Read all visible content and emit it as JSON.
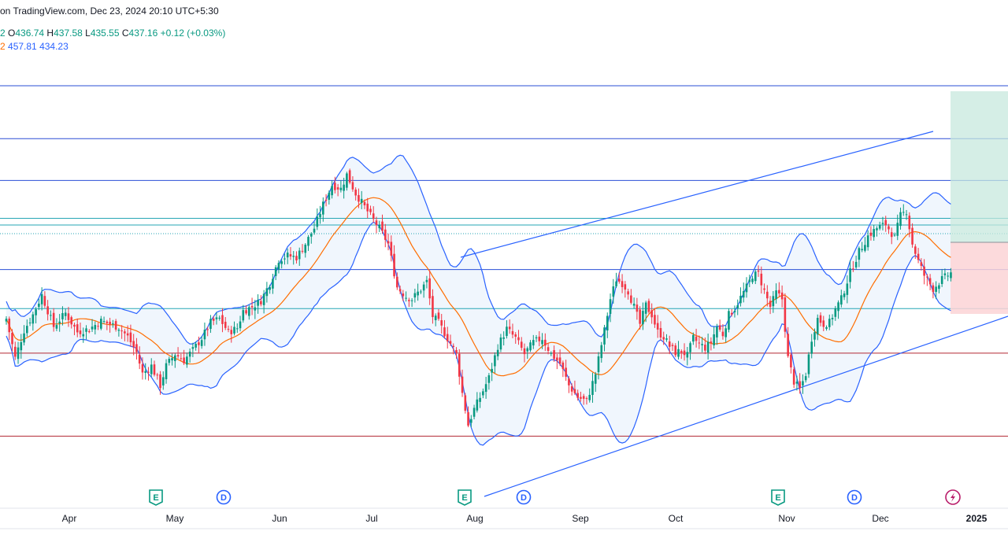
{
  "header": {
    "source_text": "on TradingView.com, Dec 23, 2024 20:10 UTC+5:30",
    "ohlc_tail": "2",
    "open_label": "O",
    "open": "436.74",
    "high_label": "H",
    "high": "437.58",
    "low_label": "L",
    "low": "435.55",
    "close_label": "C",
    "close": "437.16",
    "change": "+0.12 (+0.03%)",
    "bb_tail": "2",
    "bb_upper": "457.81",
    "bb_lower": "434.23"
  },
  "colors": {
    "up": "#089981",
    "down": "#f23645",
    "bb_band": "#2962ff",
    "bb_fill": "#e3effb",
    "basis": "#ff6d00",
    "trendline": "#2962ff",
    "level_blue": "#2a4fd6",
    "level_teal": "#26a6b5",
    "level_red": "#b22833",
    "target_zone": "#c7e8dd",
    "stop_zone": "#fbd3d6",
    "axis_text": "#131722"
  },
  "chart_data": {
    "type": "candlestick",
    "x_axis_labels": [
      "Apr",
      "May",
      "Jun",
      "Jul",
      "Aug",
      "Sep",
      "Oct",
      "Nov",
      "Dec",
      "2025"
    ],
    "last_bar": {
      "open": 436.74,
      "high": 437.58,
      "low": 435.55,
      "close": 437.16,
      "change": 0.12,
      "change_pct": 0.03
    },
    "bollinger": {
      "upper": 457.81,
      "lower": 434.23
    },
    "event_markers": [
      {
        "type": "E",
        "month": "May",
        "icon": "earnings-icon"
      },
      {
        "type": "D",
        "month": "May",
        "icon": "dividend-icon"
      },
      {
        "type": "E",
        "month": "Aug",
        "icon": "earnings-icon"
      },
      {
        "type": "D",
        "month": "Aug",
        "icon": "dividend-icon"
      },
      {
        "type": "E",
        "month": "Nov",
        "icon": "earnings-icon"
      },
      {
        "type": "D",
        "month": "Nov",
        "icon": "dividend-icon"
      },
      {
        "type": "flash",
        "month": "Dec",
        "icon": "lightning-icon"
      }
    ],
    "price_path": [
      [
        0,
        55
      ],
      [
        3,
        5
      ],
      [
        6,
        40
      ],
      [
        9,
        60
      ],
      [
        12,
        85
      ],
      [
        16,
        45
      ],
      [
        20,
        62
      ],
      [
        24,
        38
      ],
      [
        28,
        42
      ],
      [
        32,
        52
      ],
      [
        35,
        48
      ],
      [
        38,
        44
      ],
      [
        41,
        32
      ],
      [
        44,
        12
      ],
      [
        46,
        -15
      ],
      [
        49,
        -5
      ],
      [
        52,
        -30
      ],
      [
        54,
        -5
      ],
      [
        57,
        10
      ],
      [
        60,
        2
      ],
      [
        63,
        15
      ],
      [
        66,
        30
      ],
      [
        69,
        50
      ],
      [
        72,
        55
      ],
      [
        75,
        38
      ],
      [
        78,
        43
      ],
      [
        80,
        65
      ],
      [
        83,
        70
      ],
      [
        86,
        78
      ],
      [
        89,
        100
      ],
      [
        92,
        130
      ],
      [
        95,
        135
      ],
      [
        98,
        133
      ],
      [
        101,
        150
      ],
      [
        104,
        170
      ],
      [
        107,
        200
      ],
      [
        110,
        225
      ],
      [
        113,
        220
      ],
      [
        115,
        238
      ],
      [
        118,
        214
      ],
      [
        121,
        197
      ],
      [
        124,
        180
      ],
      [
        126,
        170
      ],
      [
        129,
        150
      ],
      [
        132,
        95
      ],
      [
        135,
        83
      ],
      [
        137,
        80
      ],
      [
        140,
        92
      ],
      [
        142,
        102
      ],
      [
        144,
        58
      ],
      [
        146,
        50
      ],
      [
        149,
        30
      ],
      [
        152,
        10
      ],
      [
        154,
        -40
      ],
      [
        156,
        -80
      ],
      [
        158,
        -60
      ],
      [
        160,
        -45
      ],
      [
        163,
        -20
      ],
      [
        166,
        20
      ],
      [
        169,
        42
      ],
      [
        172,
        30
      ],
      [
        175,
        10
      ],
      [
        178,
        25
      ],
      [
        181,
        30
      ],
      [
        184,
        10
      ],
      [
        187,
        -2
      ],
      [
        190,
        -30
      ],
      [
        193,
        -45
      ],
      [
        196,
        -50
      ],
      [
        199,
        -15
      ],
      [
        202,
        40
      ],
      [
        204,
        80
      ],
      [
        206,
        105
      ],
      [
        208,
        100
      ],
      [
        210,
        90
      ],
      [
        212,
        70
      ],
      [
        214,
        48
      ],
      [
        216,
        72
      ],
      [
        218,
        60
      ],
      [
        220,
        38
      ],
      [
        222,
        32
      ],
      [
        224,
        20
      ],
      [
        226,
        12
      ],
      [
        228,
        14
      ],
      [
        230,
        8
      ],
      [
        232,
        30
      ],
      [
        234,
        23
      ],
      [
        236,
        18
      ],
      [
        238,
        25
      ],
      [
        240,
        45
      ],
      [
        242,
        35
      ],
      [
        244,
        60
      ],
      [
        246,
        68
      ],
      [
        248,
        82
      ],
      [
        250,
        95
      ],
      [
        252,
        110
      ],
      [
        254,
        112
      ],
      [
        256,
        90
      ],
      [
        258,
        70
      ],
      [
        260,
        88
      ],
      [
        262,
        80
      ],
      [
        264,
        5
      ],
      [
        266,
        -25
      ],
      [
        268,
        -35
      ],
      [
        270,
        -15
      ],
      [
        272,
        30
      ],
      [
        274,
        55
      ],
      [
        276,
        48
      ],
      [
        278,
        50
      ],
      [
        280,
        67
      ],
      [
        282,
        80
      ],
      [
        285,
        114
      ],
      [
        288,
        140
      ],
      [
        291,
        160
      ],
      [
        294,
        170
      ],
      [
        297,
        175
      ],
      [
        300,
        158
      ],
      [
        302,
        186
      ],
      [
        304,
        192
      ],
      [
        306,
        150
      ],
      [
        308,
        128
      ],
      [
        310,
        110
      ],
      [
        313,
        93
      ],
      [
        316,
        105
      ],
      [
        319,
        113
      ]
    ],
    "levels": [
      {
        "frac": 0.154,
        "color": "level_blue"
      },
      {
        "frac": 0.249,
        "color": "level_blue"
      },
      {
        "frac": 0.324,
        "color": "level_blue"
      },
      {
        "frac": 0.392,
        "color": "level_teal"
      },
      {
        "frac": 0.404,
        "color": "level_teal"
      },
      {
        "frac": 0.484,
        "color": "level_blue"
      },
      {
        "frac": 0.554,
        "color": "level_teal"
      },
      {
        "frac": 0.634,
        "color": "level_red"
      },
      {
        "frac": 0.783,
        "color": "level_red"
      }
    ]
  }
}
